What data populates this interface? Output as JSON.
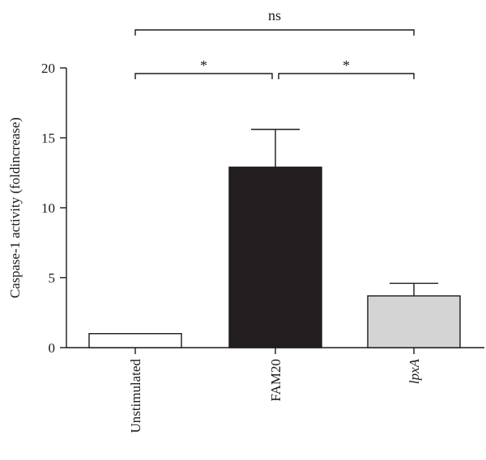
{
  "chart_data": {
    "type": "bar",
    "ylabel": "Caspase-1 activity (foldincrease)",
    "xlabel": "",
    "ylim": [
      0,
      20
    ],
    "yticks": [
      0,
      5,
      10,
      15,
      20
    ],
    "grid": false,
    "categories": [
      "Unstimulated",
      "FAM20",
      "lpxA"
    ],
    "category_italic": [
      false,
      false,
      true
    ],
    "values": [
      1.0,
      12.9,
      3.7
    ],
    "errors": [
      0,
      2.7,
      0.9
    ],
    "bar_colors": [
      "#ffffff",
      "#231f20",
      "#d4d4d4"
    ],
    "significance": [
      {
        "from": 0,
        "to": 1,
        "label": "*",
        "level": 1
      },
      {
        "from": 1,
        "to": 2,
        "label": "*",
        "level": 1
      },
      {
        "from": 0,
        "to": 2,
        "label": "ns",
        "level": 2
      }
    ]
  }
}
